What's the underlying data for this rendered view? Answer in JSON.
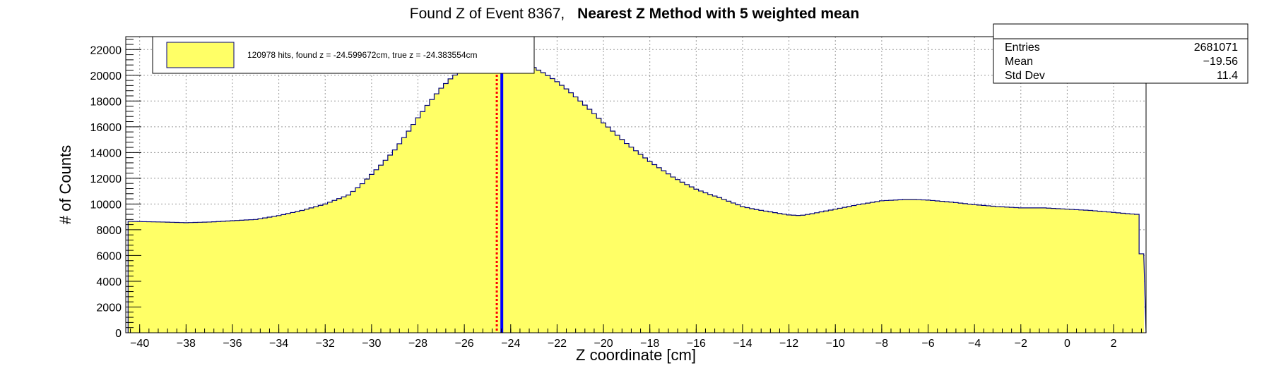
{
  "chart_data": {
    "type": "bar",
    "title": {
      "prefix": "Found Z of Event 8367,",
      "bold": "Nearest Z Method with 5 weighted mean"
    },
    "xlabel": "Z coordinate [cm]",
    "ylabel": "# of Counts",
    "xlim": [
      -40.6,
      3.4
    ],
    "ylim": [
      0,
      23000
    ],
    "grid": true,
    "x_ticks": [
      -40,
      -38,
      -36,
      -34,
      -32,
      -30,
      -28,
      -26,
      -24,
      -22,
      -20,
      -18,
      -16,
      -14,
      -12,
      -10,
      -8,
      -6,
      -4,
      -2,
      0,
      2
    ],
    "x_tick_labels": [
      "−40",
      "−38",
      "−36",
      "−34",
      "−32",
      "−30",
      "−28",
      "−26",
      "−24",
      "−22",
      "−20",
      "−18",
      "−16",
      "−14",
      "−12",
      "−10",
      "−8",
      "−6",
      "−4",
      "−2",
      "0",
      "2"
    ],
    "y_ticks": [
      0,
      2000,
      4000,
      6000,
      8000,
      10000,
      12000,
      14000,
      16000,
      18000,
      20000,
      22000
    ],
    "y_tick_labels": [
      "0",
      "2000",
      "4000",
      "6000",
      "8000",
      "10000",
      "12000",
      "14000",
      "16000",
      "18000",
      "20000",
      "22000"
    ],
    "bin_width": 0.2,
    "x": [
      -40.4,
      -39.0,
      -38.0,
      -37.0,
      -36.0,
      -35.0,
      -34.0,
      -33.0,
      -32.0,
      -31.0,
      -30.5,
      -30.0,
      -29.5,
      -29.0,
      -28.5,
      -28.0,
      -27.5,
      -27.0,
      -26.5,
      -26.0,
      -25.5,
      -25.0,
      -24.6,
      -24.4,
      -24.0,
      -23.5,
      -23.0,
      -22.5,
      -22.0,
      -21.5,
      -21.0,
      -20.5,
      -20.0,
      -19.5,
      -19.0,
      -18.5,
      -18.0,
      -17.5,
      -17.0,
      -16.5,
      -16.0,
      -15.5,
      -15.0,
      -14.5,
      -14.0,
      -13.5,
      -13.0,
      -12.0,
      -11.5,
      -11.0,
      -10.0,
      -9.0,
      -8.0,
      -7.0,
      -6.5,
      -6.0,
      -5.0,
      -4.0,
      -3.0,
      -2.0,
      -1.0,
      0.0,
      1.0,
      2.0,
      2.6,
      3.0,
      3.3
    ],
    "y": [
      8650,
      8600,
      8550,
      8600,
      8700,
      8800,
      9100,
      9500,
      10000,
      10700,
      11400,
      12300,
      13200,
      14200,
      15400,
      16700,
      17900,
      19000,
      19900,
      20500,
      20900,
      21100,
      21200,
      21250,
      21200,
      21000,
      20600,
      20100,
      19500,
      18800,
      18000,
      17200,
      16300,
      15500,
      14700,
      14000,
      13300,
      12700,
      12100,
      11600,
      11150,
      10800,
      10500,
      10150,
      9800,
      9600,
      9450,
      9150,
      9100,
      9250,
      9600,
      9950,
      10250,
      10350,
      10350,
      10300,
      10150,
      9950,
      9800,
      9700,
      9700,
      9600,
      9500,
      9350,
      9250,
      9200,
      4600
    ],
    "series": [
      {
        "name": "120978 hits, found z = -24.599672cm, true z = -24.383554cm"
      }
    ],
    "vertical_lines": [
      {
        "x": -24.599672,
        "style": "dotted"
      },
      {
        "x": -24.383554,
        "style": "solid"
      }
    ],
    "legend": {
      "position": "top-left",
      "label": "120978 hits, found z = -24.599672cm, true z = -24.383554cm"
    },
    "stats": {
      "entries_label": "Entries",
      "entries": "2681071",
      "mean_label": "Mean",
      "mean": "−19.56",
      "std_label": "Std Dev",
      "std": "11.4",
      "position": "top-right"
    },
    "colors": {
      "fill": "#ffff66",
      "outline": "#00007a",
      "found_line": "#ff0000",
      "true_line": "#0000ff",
      "grid": "#9a9a9a"
    }
  }
}
